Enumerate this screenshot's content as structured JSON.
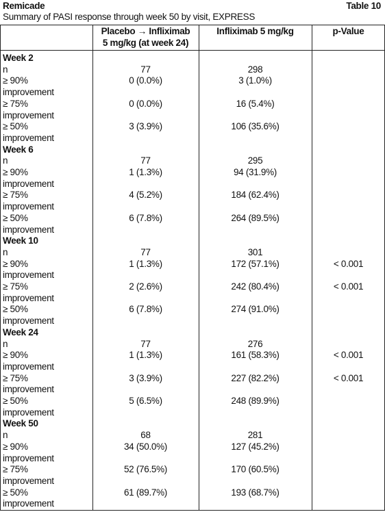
{
  "header": {
    "title": "Remicade",
    "table_label": "Table 10",
    "subtitle": "Summary of PASI response through week 50 by visit, EXPRESS"
  },
  "table": {
    "columns": [
      [
        "Placebo → Infliximab",
        "5 mg/kg (at week 24)"
      ],
      [
        "Infliximab 5 mg/kg"
      ],
      [
        "p-Value"
      ]
    ],
    "groups": [
      {
        "label": "Week 2",
        "rows": [
          {
            "label": [
              "n"
            ],
            "placebo": "77",
            "infliximab": "298"
          },
          {
            "label": [
              "≥ 90%",
              "improvement"
            ],
            "placebo": "0 (0.0%)",
            "infliximab": "3 (1.0%)"
          },
          {
            "label": [
              "≥ 75%",
              "improvement"
            ],
            "placebo": "0 (0.0%)",
            "infliximab": "16 (5.4%)"
          },
          {
            "label": [
              "≥ 50%",
              "improvement"
            ],
            "placebo": "3 (3.9%)",
            "infliximab": "106 (35.6%)"
          }
        ]
      },
      {
        "label": "Week 6",
        "rows": [
          {
            "label": [
              "n"
            ],
            "placebo": "77",
            "infliximab": "295"
          },
          {
            "label": [
              "≥ 90%",
              "improvement"
            ],
            "placebo": "1 (1.3%)",
            "infliximab": "94 (31.9%)"
          },
          {
            "label": [
              "≥ 75%",
              "improvement"
            ],
            "placebo": "4 (5.2%)",
            "infliximab": "184 (62.4%)"
          },
          {
            "label": [
              "≥ 50%",
              "improvement"
            ],
            "placebo": "6 (7.8%)",
            "infliximab": "264 (89.5%)"
          }
        ]
      },
      {
        "label": "Week 10",
        "rows": [
          {
            "label": [
              "n"
            ],
            "placebo": "77",
            "infliximab": "301"
          },
          {
            "label": [
              "≥ 90%",
              "improvement"
            ],
            "placebo": "1 (1.3%)",
            "infliximab": "172 (57.1%)",
            "p": "< 0.001"
          },
          {
            "label": [
              "≥ 75%",
              "improvement"
            ],
            "placebo": "2 (2.6%)",
            "infliximab": "242 (80.4%)",
            "p": "< 0.001"
          },
          {
            "label": [
              "≥ 50%",
              "improvement"
            ],
            "placebo": "6 (7.8%)",
            "infliximab": "274 (91.0%)"
          }
        ]
      },
      {
        "label": "Week 24",
        "rows": [
          {
            "label": [
              "n"
            ],
            "placebo": "77",
            "infliximab": "276"
          },
          {
            "label": [
              "≥ 90%",
              "improvement"
            ],
            "placebo": "1 (1.3%)",
            "infliximab": "161 (58.3%)",
            "p": "< 0.001"
          },
          {
            "label": [
              "≥ 75%",
              "improvement"
            ],
            "placebo": "3 (3.9%)",
            "infliximab": "227 (82.2%)",
            "p": "< 0.001"
          },
          {
            "label": [
              "≥ 50%",
              "improvement"
            ],
            "placebo": "5 (6.5%)",
            "infliximab": "248 (89.9%)"
          }
        ]
      },
      {
        "label": "Week 50",
        "rows": [
          {
            "label": [
              "n"
            ],
            "placebo": "68",
            "infliximab": "281"
          },
          {
            "label": [
              "≥ 90%",
              "improvement"
            ],
            "placebo": "34 (50.0%)",
            "infliximab": "127 (45.2%)"
          },
          {
            "label": [
              "≥ 75%",
              "improvement"
            ],
            "placebo": "52 (76.5%)",
            "infliximab": "170 (60.5%)"
          },
          {
            "label": [
              "≥ 50%",
              "improvement"
            ],
            "placebo": "61 (89.7%)",
            "infliximab": "193 (68.7%)"
          }
        ]
      }
    ]
  }
}
